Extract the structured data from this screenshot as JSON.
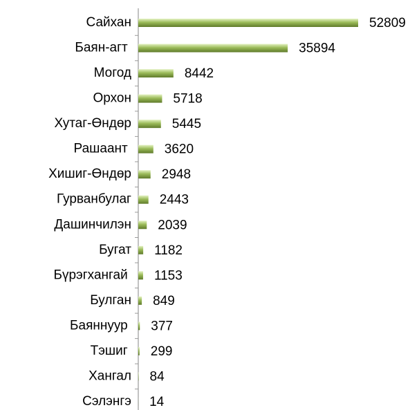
{
  "chart_data": {
    "type": "bar",
    "orientation": "horizontal",
    "categories": [
      "Сайхан",
      "Баян-агт ",
      "Могод",
      "Орхон",
      "Хутаг-Өндөр",
      "Рашаант ",
      "Хишиг-Өндөр",
      "Гурванбулаг",
      "Дашинчилэн",
      "Бугат",
      "Бүрэгхангай ",
      "Булган",
      "Баяннуур ",
      "Тэшиг ",
      "Хангал",
      "Сэлэнгэ"
    ],
    "values": [
      52809,
      35894,
      8442,
      5718,
      5445,
      3620,
      2948,
      2443,
      2039,
      1182,
      1153,
      849,
      377,
      299,
      84,
      14
    ],
    "color": "#9bbb59"
  }
}
